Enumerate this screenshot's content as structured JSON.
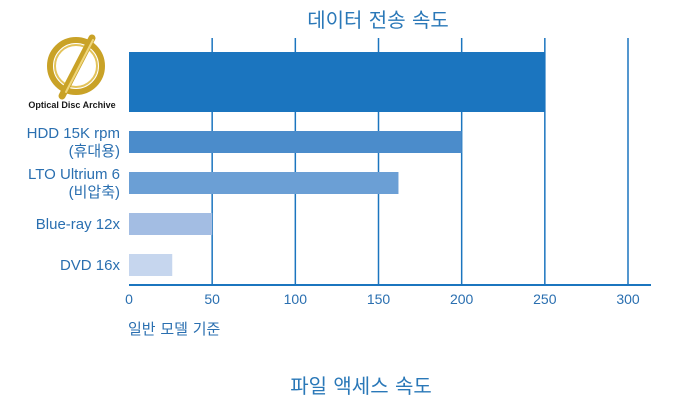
{
  "chart_data": {
    "type": "bar",
    "orientation": "horizontal",
    "title": "데이터 전송 속도",
    "categories": [
      {
        "lines": [
          "Optical Disc Archive"
        ],
        "logo": true
      },
      {
        "lines": [
          "HDD 15K rpm",
          "(휴대용)"
        ]
      },
      {
        "lines": [
          "LTO Ultrium 6",
          "(비압축)"
        ]
      },
      {
        "lines": [
          "Blue-ray 12x"
        ]
      },
      {
        "lines": [
          "DVD 16x"
        ]
      }
    ],
    "values": [
      250,
      200,
      162,
      50,
      26
    ],
    "bar_colors": [
      "#1b75bf",
      "#4b8ccb",
      "#6b9fd5",
      "#a3bde3",
      "#c6d6ee"
    ],
    "xlim": [
      0,
      300
    ],
    "xticks": [
      0,
      50,
      100,
      150,
      200,
      250,
      300
    ],
    "grid": true,
    "note": "일반 모델 기준",
    "next_title": "파일 액세스 속도"
  },
  "colors": {
    "axis": "#1b75bf",
    "grid": "#1b75bf",
    "text": "#2a6fb0",
    "logo_gold": "#c9a227"
  }
}
